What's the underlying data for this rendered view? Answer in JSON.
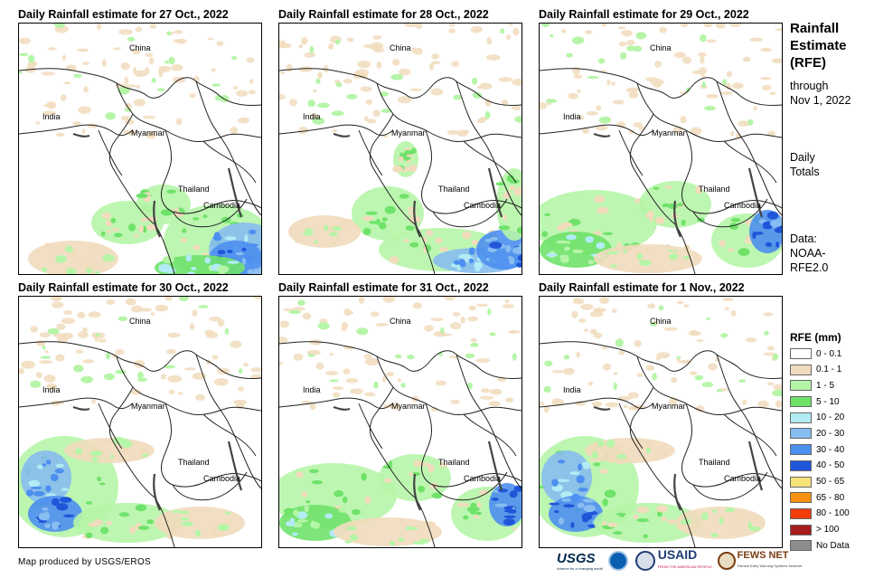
{
  "panels": [
    {
      "title": "Daily Rainfall estimate for 27 Oct., 2022",
      "regime": "southeast"
    },
    {
      "title": "Daily Rainfall estimate for 28 Oct., 2022",
      "regime": "south"
    },
    {
      "title": "Daily Rainfall estimate for 29 Oct., 2022",
      "regime": "southwest"
    },
    {
      "title": "Daily Rainfall estimate for 30 Oct., 2022",
      "regime": "west"
    },
    {
      "title": "Daily Rainfall estimate for 31 Oct., 2022",
      "regime": "southwest"
    },
    {
      "title": "Daily Rainfall estimate for 1 Nov., 2022",
      "regime": "west"
    }
  ],
  "map_labels": {
    "china": "China",
    "india": "India",
    "myanmar": "Myanmar",
    "thailand": "Thailand",
    "cambodia": "Cambodia"
  },
  "sidebar": {
    "title_line1": "Rainfall",
    "title_line2": "Estimate",
    "title_line3": "(RFE)",
    "through_line1": "through",
    "through_line2": "Nov 1, 2022",
    "totals_line1": "Daily",
    "totals_line2": "Totals",
    "data_line1": "Data:",
    "data_line2": "NOAA-",
    "data_line3": "RFE2.0"
  },
  "legend": {
    "title": "RFE (mm)",
    "items": [
      {
        "label": "0 - 0.1",
        "color": "#ffffff"
      },
      {
        "label": "0.1 - 1",
        "color": "#f1dcbd"
      },
      {
        "label": "1 - 5",
        "color": "#b6f5a8"
      },
      {
        "label": "5 - 10",
        "color": "#6fe26a"
      },
      {
        "label": "10 - 20",
        "color": "#b2ecf5"
      },
      {
        "label": "20 - 30",
        "color": "#87bdf0"
      },
      {
        "label": "30 - 40",
        "color": "#4d8ff0"
      },
      {
        "label": "40 - 50",
        "color": "#1f56d9"
      },
      {
        "label": "50 - 65",
        "color": "#f7e27a"
      },
      {
        "label": "65 - 80",
        "color": "#f7920f"
      },
      {
        "label": "80 - 100",
        "color": "#f03d0a"
      },
      {
        "label": "> 100",
        "color": "#a61c1c"
      },
      {
        "label": "No Data",
        "color": "#8c8c8c"
      }
    ]
  },
  "footer": {
    "credit": "Map produced by USGS/EROS",
    "logos": {
      "usgs": "USGS",
      "usgs_tagline": "science for a changing world",
      "noaa": "noaa-logo",
      "usaid": "USAID",
      "usaid_tagline": "FROM THE AMERICAN PEOPLE",
      "fews": "FEWS NET",
      "fews_tagline": "Famine Early Warning Systems Network"
    }
  }
}
